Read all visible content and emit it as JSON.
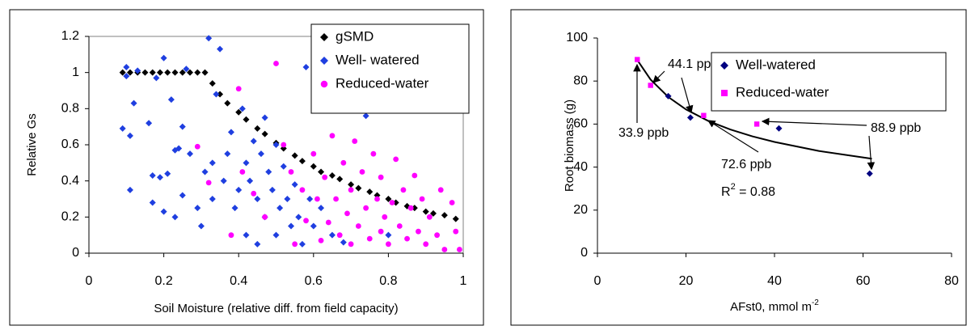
{
  "chart_data": [
    {
      "type": "scatter",
      "x_label": "Soil Moisture (relative diff. from field capacity)",
      "y_label": "Relative Gs",
      "xlim": [
        0,
        1
      ],
      "xticks": [
        0,
        0.2,
        0.4,
        0.6,
        0.8,
        1
      ],
      "ylim": [
        0,
        1.2
      ],
      "yticks": [
        0,
        0.2,
        0.4,
        0.6,
        0.8,
        1,
        1.2
      ],
      "plot_border": true,
      "legend": "upper right",
      "series": [
        {
          "name": "gSMD",
          "color": "#000000",
          "marker": "diamond",
          "x": [
            0.09,
            0.11,
            0.13,
            0.15,
            0.17,
            0.19,
            0.21,
            0.23,
            0.25,
            0.27,
            0.29,
            0.31,
            0.33,
            0.35,
            0.37,
            0.4,
            0.42,
            0.45,
            0.47,
            0.5,
            0.52,
            0.55,
            0.57,
            0.6,
            0.62,
            0.65,
            0.67,
            0.7,
            0.72,
            0.75,
            0.77,
            0.8,
            0.82,
            0.85,
            0.87,
            0.9,
            0.92,
            0.95,
            0.98
          ],
          "values": [
            1,
            1,
            1,
            1,
            1,
            1,
            1,
            1,
            1,
            1,
            1,
            1,
            0.94,
            0.88,
            0.83,
            0.78,
            0.74,
            0.69,
            0.66,
            0.61,
            0.58,
            0.54,
            0.51,
            0.48,
            0.45,
            0.43,
            0.41,
            0.38,
            0.36,
            0.34,
            0.32,
            0.3,
            0.28,
            0.26,
            0.25,
            0.23,
            0.22,
            0.21,
            0.19
          ]
        },
        {
          "name": "Well- watered",
          "color": "#1f3fe0",
          "marker": "diamond",
          "x": [
            0.09,
            0.1,
            0.1,
            0.11,
            0.11,
            0.12,
            0.13,
            0.16,
            0.17,
            0.17,
            0.18,
            0.19,
            0.2,
            0.2,
            0.21,
            0.22,
            0.23,
            0.23,
            0.24,
            0.25,
            0.25,
            0.26,
            0.27,
            0.29,
            0.3,
            0.31,
            0.32,
            0.33,
            0.33,
            0.34,
            0.35,
            0.36,
            0.37,
            0.38,
            0.39,
            0.4,
            0.41,
            0.42,
            0.42,
            0.43,
            0.44,
            0.45,
            0.45,
            0.46,
            0.47,
            0.47,
            0.48,
            0.49,
            0.5,
            0.5,
            0.51,
            0.52,
            0.53,
            0.54,
            0.55,
            0.56,
            0.57,
            0.58,
            0.59,
            0.6,
            0.62,
            0.65,
            0.68,
            0.74,
            0.8
          ],
          "values": [
            0.69,
            1.03,
            0.98,
            0.65,
            0.35,
            0.83,
            1.01,
            0.72,
            0.43,
            0.28,
            0.97,
            0.42,
            1.08,
            0.23,
            0.44,
            0.85,
            0.57,
            0.2,
            0.58,
            0.7,
            0.32,
            1.02,
            0.55,
            0.25,
            0.15,
            0.45,
            1.19,
            0.5,
            0.3,
            0.88,
            1.13,
            0.4,
            0.55,
            0.67,
            0.25,
            0.35,
            0.8,
            0.5,
            0.1,
            0.4,
            0.62,
            0.3,
            0.05,
            0.55,
            0.75,
            0.2,
            0.45,
            0.35,
            0.6,
            0.1,
            0.25,
            0.48,
            0.3,
            0.15,
            0.38,
            0.2,
            0.05,
            1.03,
            0.3,
            0.15,
            0.25,
            0.1,
            0.06,
            0.76,
            0.1
          ]
        },
        {
          "name": "Reduced-water",
          "color": "#ff00ff",
          "marker": "circle",
          "x": [
            0.29,
            0.32,
            0.38,
            0.4,
            0.41,
            0.44,
            0.47,
            0.5,
            0.52,
            0.54,
            0.55,
            0.57,
            0.58,
            0.6,
            0.61,
            0.62,
            0.63,
            0.64,
            0.65,
            0.66,
            0.67,
            0.68,
            0.69,
            0.7,
            0.7,
            0.71,
            0.72,
            0.73,
            0.74,
            0.75,
            0.76,
            0.77,
            0.78,
            0.78,
            0.79,
            0.8,
            0.81,
            0.82,
            0.83,
            0.84,
            0.85,
            0.86,
            0.87,
            0.88,
            0.89,
            0.9,
            0.91,
            0.93,
            0.94,
            0.95,
            0.97,
            0.98,
            0.99
          ],
          "values": [
            0.59,
            0.39,
            0.1,
            0.91,
            0.45,
            0.33,
            0.2,
            1.05,
            0.6,
            0.45,
            0.05,
            0.35,
            0.18,
            0.55,
            0.3,
            0.07,
            0.42,
            0.17,
            0.65,
            0.3,
            0.1,
            0.5,
            0.22,
            0.35,
            0.05,
            0.62,
            0.15,
            0.45,
            0.25,
            0.08,
            0.55,
            0.3,
            0.12,
            0.42,
            0.2,
            0.05,
            0.28,
            0.52,
            0.15,
            0.35,
            0.08,
            0.25,
            0.43,
            0.12,
            0.3,
            0.05,
            0.2,
            0.1,
            0.35,
            0.02,
            0.28,
            0.12,
            0.02
          ]
        }
      ]
    },
    {
      "type": "scatter",
      "x_label": {
        "text": "AFst0, mmol m",
        "superscript": "-2"
      },
      "y_label": "Root biomass (g)",
      "xlim": [
        0,
        80
      ],
      "xticks": [
        0,
        20,
        40,
        60,
        80
      ],
      "ylim": [
        0,
        100
      ],
      "yticks": [
        0,
        20,
        40,
        60,
        80,
        100
      ],
      "plot_border": false,
      "legend": "upper right",
      "series": [
        {
          "name": "Well-watered",
          "color": "#000080",
          "marker": "diamond",
          "x": [
            16,
            21,
            41,
            61.5
          ],
          "values": [
            73,
            63,
            58,
            37
          ]
        },
        {
          "name": "Reduced-water",
          "color": "#ff00ff",
          "marker": "square",
          "x": [
            9,
            12,
            24,
            36
          ],
          "values": [
            90,
            78,
            64,
            60
          ]
        }
      ],
      "trendline": {
        "color": "#000000",
        "x": [
          9,
          12,
          16,
          20,
          25,
          30,
          35,
          40,
          50,
          62
        ],
        "values": [
          89.8,
          80.7,
          72.6,
          66.8,
          61.5,
          57.5,
          54.3,
          51.7,
          47.5,
          43.9
        ]
      },
      "annotations": [
        "44.1 ppb",
        "33.9 ppb",
        "88.9 ppb",
        "72.6 ppb"
      ],
      "r_squared": {
        "text": "R",
        "superscript": "2",
        "suffix": " = 0.88"
      }
    }
  ]
}
